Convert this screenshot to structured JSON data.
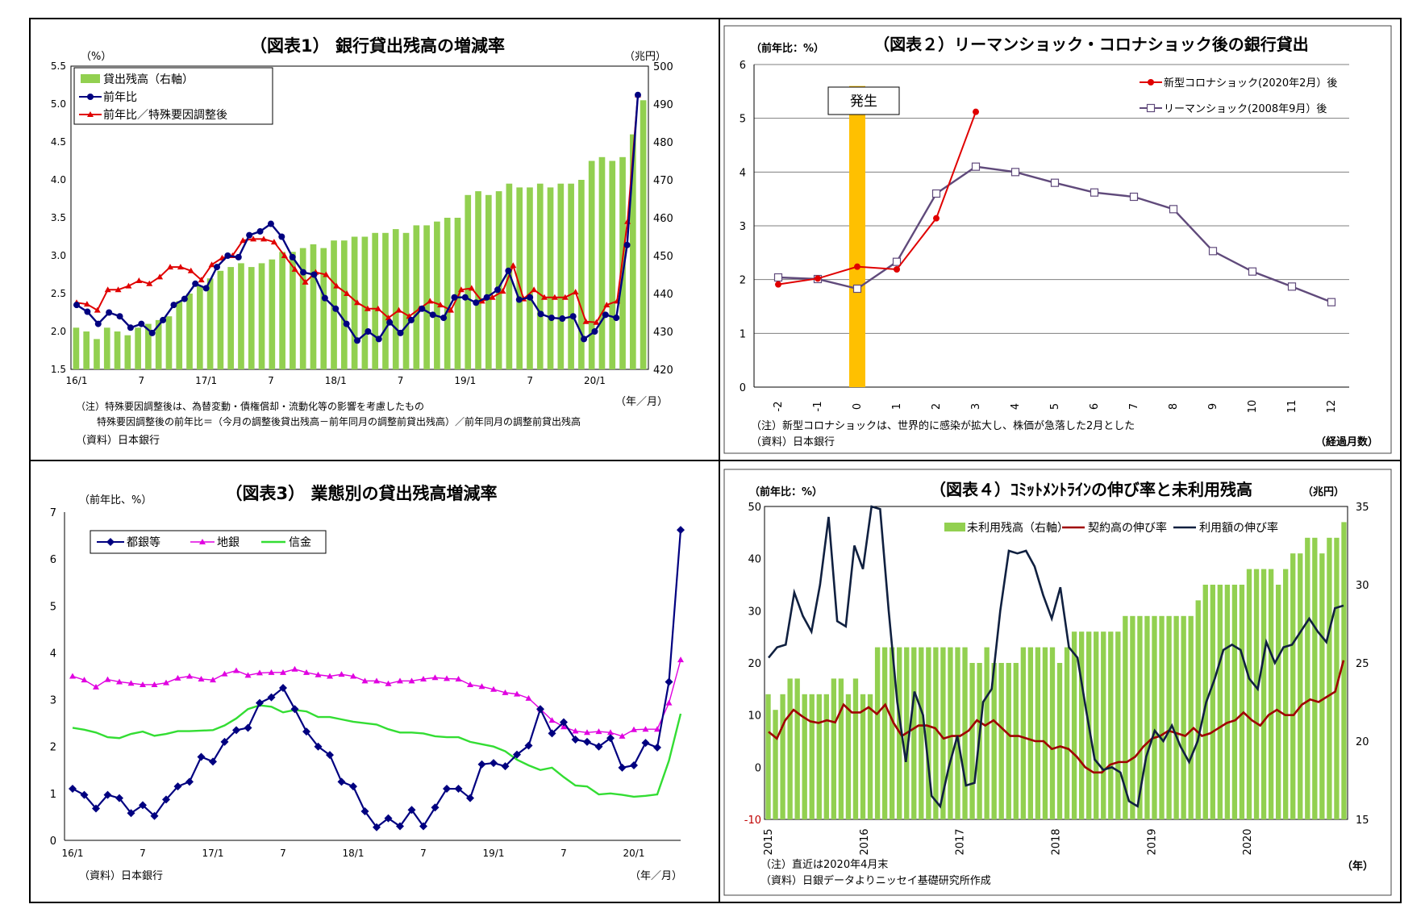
{
  "charts": [
    {
      "id": "c1",
      "type": "bar+line",
      "title": "（図表1） 銀行貸出残高の増減率",
      "left_unit": "（%）",
      "right_unit": "（兆円）",
      "x_unit": "（年／月）",
      "y_left": [
        1.5,
        5.5
      ],
      "y_left_step": 0.5,
      "y_right": [
        420,
        500
      ],
      "y_right_step": 10,
      "x_labels": [
        "16/1",
        "7",
        "17/1",
        "7",
        "18/1",
        "7",
        "19/1",
        "7",
        "20/1"
      ],
      "legend": [
        "貸出残高（右軸）",
        "前年比",
        "前年比／特殊要因調整後"
      ],
      "notes": [
        "（注）特殊要因調整後は、為替変動・債権償却・流動化等の影響を考慮したもの",
        "特殊要因調整後の前年比＝（今月の調整後貸出残高－前年同月の調整前貸出残高）／前年同月の調整前貸出残高",
        "（資料）日本銀行"
      ],
      "colors": {
        "bar": "#92D050",
        "line1": "#000080",
        "line2": "#E00000"
      },
      "bars": [
        431,
        430,
        428,
        431,
        430,
        429,
        431,
        432,
        433,
        434,
        438,
        440,
        442,
        444,
        446,
        447,
        448,
        447,
        448,
        449,
        451,
        451,
        452,
        453,
        452,
        454,
        454,
        455,
        455,
        456,
        456,
        457,
        456,
        458,
        458,
        459,
        460,
        460,
        466,
        467,
        466,
        467,
        469,
        468,
        468,
        469,
        468,
        469,
        469,
        470,
        475,
        476,
        475,
        476,
        482,
        491
      ],
      "series1": [
        2.35,
        2.26,
        2.1,
        2.25,
        2.2,
        2.05,
        2.1,
        1.98,
        2.15,
        2.35,
        2.43,
        2.63,
        2.57,
        2.85,
        3.0,
        2.98,
        3.27,
        3.32,
        3.42,
        3.25,
        2.98,
        2.78,
        2.75,
        2.44,
        2.3,
        2.1,
        1.88,
        2.0,
        1.9,
        2.12,
        1.98,
        2.15,
        2.3,
        2.22,
        2.18,
        2.45,
        2.45,
        2.38,
        2.45,
        2.55,
        2.8,
        2.42,
        2.45,
        2.23,
        2.18,
        2.17,
        2.2,
        1.9,
        2.0,
        2.22,
        2.18,
        3.14,
        5.12
      ],
      "series2": [
        2.38,
        2.36,
        2.28,
        2.55,
        2.55,
        2.6,
        2.67,
        2.63,
        2.72,
        2.85,
        2.85,
        2.8,
        2.68,
        2.88,
        2.97,
        3.0,
        3.2,
        3.22,
        3.22,
        3.18,
        3.0,
        2.82,
        2.65,
        2.78,
        2.75,
        2.6,
        2.5,
        2.38,
        2.3,
        2.3,
        2.18,
        2.28,
        2.2,
        2.3,
        2.4,
        2.35,
        2.28,
        2.55,
        2.57,
        2.4,
        2.45,
        2.53,
        2.87,
        2.43,
        2.55,
        2.45,
        2.45,
        2.45,
        2.52,
        2.13,
        2.12,
        2.35,
        2.4,
        3.45,
        5.12
      ]
    },
    {
      "id": "c2",
      "type": "line",
      "title": "（図表２）リーマンショック・コロナショック後の銀行貸出",
      "left_unit": "（前年比：%）",
      "x_unit": "（経過月数）",
      "y_left": [
        0,
        6
      ],
      "y_left_step": 1,
      "x_labels": [
        "-2",
        "-1",
        "0",
        "1",
        "2",
        "3",
        "4",
        "5",
        "6",
        "7",
        "8",
        "9",
        "10",
        "11",
        "12"
      ],
      "marker_label": "発生",
      "legend": [
        "新型コロナショック(2020年2月）後",
        "リーマンショック(2008年9月）後"
      ],
      "notes": [
        "（注）新型コロナショックは、世界的に感染が拡大し、株価が急落した2月とした",
        "（資料）日本銀行"
      ],
      "colors": {
        "corona": "#E00000",
        "lehman": "#604A7B",
        "marker": "#FFC000"
      },
      "corona": [
        1.91,
        2.02,
        2.24,
        2.19,
        3.14,
        5.12
      ],
      "lehman": [
        2.04,
        2.01,
        1.83,
        2.33,
        3.6,
        4.1,
        4.0,
        3.8,
        3.62,
        3.54,
        3.31,
        2.53,
        2.15,
        1.87,
        1.58
      ]
    },
    {
      "id": "c3",
      "type": "line",
      "title": "（図表3） 業態別の貸出残高増減率",
      "left_unit": "（前年比、%）",
      "x_unit": "（年／月）",
      "y_left": [
        0,
        7
      ],
      "y_left_step": 1,
      "x_labels": [
        "16/1",
        "7",
        "17/1",
        "7",
        "18/1",
        "7",
        "19/1",
        "7",
        "20/1"
      ],
      "legend": [
        "都銀等",
        "地銀",
        "信金"
      ],
      "notes": [
        "（資料）日本銀行"
      ],
      "colors": {
        "toshi": "#000080",
        "chigin": "#E000E0",
        "shinkin": "#33DD33"
      },
      "toshi": [
        1.1,
        0.97,
        0.68,
        0.97,
        0.9,
        0.58,
        0.75,
        0.52,
        0.87,
        1.15,
        1.25,
        1.78,
        1.68,
        2.1,
        2.35,
        2.4,
        2.93,
        3.05,
        3.25,
        2.8,
        2.32,
        2.0,
        1.82,
        1.25,
        1.15,
        0.62,
        0.28,
        0.47,
        0.3,
        0.65,
        0.3,
        0.7,
        1.1,
        1.1,
        0.9,
        1.62,
        1.65,
        1.58,
        1.83,
        2.02,
        2.8,
        2.28,
        2.52,
        2.15,
        2.1,
        2.0,
        2.18,
        1.55,
        1.6,
        2.08,
        1.98,
        3.38,
        6.62
      ],
      "chigin": [
        3.5,
        3.42,
        3.27,
        3.43,
        3.38,
        3.35,
        3.32,
        3.32,
        3.36,
        3.46,
        3.5,
        3.44,
        3.42,
        3.55,
        3.62,
        3.52,
        3.57,
        3.58,
        3.58,
        3.65,
        3.58,
        3.53,
        3.5,
        3.54,
        3.5,
        3.4,
        3.4,
        3.34,
        3.4,
        3.4,
        3.44,
        3.47,
        3.45,
        3.44,
        3.32,
        3.28,
        3.22,
        3.15,
        3.12,
        3.03,
        2.8,
        2.56,
        2.42,
        2.33,
        2.3,
        2.32,
        2.3,
        2.22,
        2.36,
        2.37,
        2.37,
        2.93,
        3.85
      ],
      "shinkin": [
        2.4,
        2.36,
        2.3,
        2.2,
        2.18,
        2.27,
        2.32,
        2.23,
        2.27,
        2.33,
        2.33,
        2.34,
        2.35,
        2.45,
        2.6,
        2.8,
        2.88,
        2.85,
        2.73,
        2.78,
        2.75,
        2.63,
        2.63,
        2.58,
        2.53,
        2.5,
        2.47,
        2.37,
        2.3,
        2.3,
        2.28,
        2.22,
        2.2,
        2.2,
        2.1,
        2.05,
        2.0,
        1.9,
        1.72,
        1.6,
        1.5,
        1.55,
        1.35,
        1.17,
        1.15,
        0.98,
        1.0,
        0.97,
        0.93,
        0.95,
        0.98,
        1.7,
        2.7
      ]
    },
    {
      "id": "c4",
      "type": "bar+line",
      "title": "（図表４）ｺﾐｯﾄﾒﾝﾄﾗｲﾝの伸び率と未利用残高",
      "left_unit": "（前年比：%）",
      "right_unit": "（兆円）",
      "x_unit": "（年）",
      "y_left": [
        -10,
        50
      ],
      "y_left_step": 10,
      "y_right": [
        15,
        35
      ],
      "y_right_step": 5,
      "x_labels": [
        "2015",
        "2016",
        "2017",
        "2018",
        "2019",
        "2020"
      ],
      "legend": [
        "未利用残高（右軸）",
        "契約高の伸び率",
        "利用額の伸び率"
      ],
      "notes": [
        "（注）直近は2020年4月末",
        "（資料）日銀データよりニッセイ基礎研究所作成"
      ],
      "colors": {
        "bar": "#92D050",
        "line1": "#A00000",
        "line2": "#102040"
      },
      "bars": [
        23,
        22,
        23,
        24,
        24,
        23,
        23,
        23,
        23,
        24,
        24,
        23,
        24,
        23,
        23,
        26,
        26,
        26,
        26,
        26,
        26,
        26,
        26,
        26,
        26,
        26,
        26,
        26,
        25,
        25,
        26,
        25,
        25,
        25,
        25,
        26,
        26,
        26,
        26,
        26,
        25,
        26,
        27,
        27,
        27,
        27,
        27,
        27,
        27,
        28,
        28,
        28,
        28,
        28,
        28,
        28,
        28,
        28,
        28,
        29,
        30,
        30,
        30,
        30,
        30,
        30,
        31,
        31,
        31,
        31,
        30,
        31,
        32,
        32,
        33,
        33,
        32,
        33,
        33,
        34
      ],
      "line_contract": [
        6.8,
        5.5,
        9.0,
        11.0,
        9.8,
        8.8,
        8.5,
        9.0,
        8.6,
        12.0,
        10.5,
        10.5,
        11.5,
        10.2,
        12.0,
        8.5,
        6.0,
        7.0,
        8.0,
        8.0,
        7.5,
        5.5,
        6.0,
        6.0,
        7.0,
        9.0,
        8.0,
        9.0,
        7.5,
        6.0,
        6.0,
        5.5,
        5.0,
        5.0,
        3.5,
        4.0,
        3.5,
        2.0,
        0.0,
        -1.0,
        -1.0,
        0.5,
        1.0,
        1.0,
        2.0,
        4.0,
        5.5,
        6.0,
        7.0,
        6.5,
        6.0,
        7.5,
        6.0,
        6.5,
        7.5,
        8.5,
        9.0,
        10.5,
        9.0,
        8.0,
        10.0,
        11.0,
        10.0,
        10.0,
        12.0,
        13.0,
        12.5,
        13.5,
        14.5,
        20.5
      ],
      "line_usage": [
        21.0,
        23.0,
        23.5,
        33.5,
        29.0,
        26.0,
        35.0,
        48.0,
        28.0,
        27.0,
        42.5,
        38.0,
        50.0,
        49.5,
        30.0,
        12.5,
        1.0,
        14.5,
        10.0,
        -5.5,
        -7.5,
        0.0,
        6.0,
        -3.5,
        -3.0,
        12.5,
        15.0,
        30.0,
        41.5,
        41.0,
        41.5,
        38.5,
        33.0,
        28.5,
        34.5,
        23.0,
        21.0,
        11.0,
        1.5,
        -0.5,
        0.0,
        -1.0,
        -6.5,
        -7.5,
        2.0,
        7.0,
        5.0,
        8.0,
        4.0,
        1.0,
        5.0,
        12.5,
        17.0,
        22.5,
        23.5,
        22.5,
        17.0,
        15.0,
        24.0,
        20.0,
        23.0,
        23.5,
        26.0,
        28.5,
        26.0,
        24.0,
        30.5,
        31.0
      ]
    }
  ]
}
